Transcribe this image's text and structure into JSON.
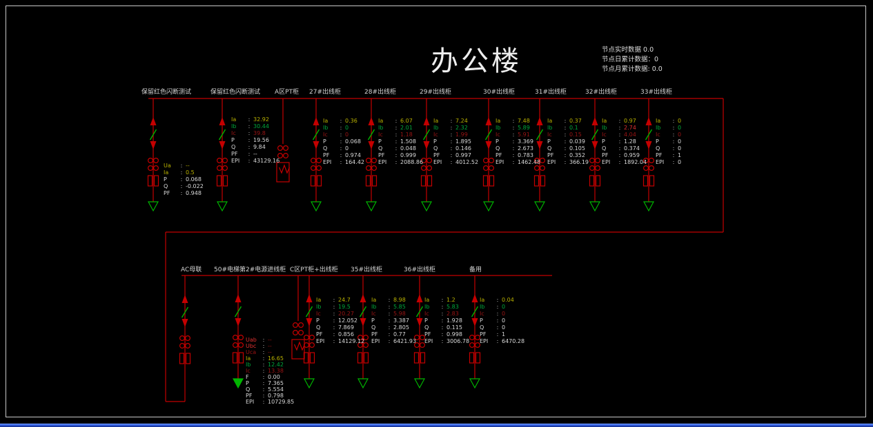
{
  "title": "办公楼",
  "node_info": {
    "realtime": "节点实时数据  0.0",
    "daily": "节点日累计数据：0",
    "monthly": "节点月累计数据: 0.0"
  },
  "colors": {
    "bus_red": "#c40000",
    "device_green": "#00b400",
    "text_yellow": "#b9b100",
    "text_green": "#00a93c",
    "text_red_dim": "#9c1414",
    "text_white": "#dadada",
    "bottom_bar_blue": "#2b55d6"
  },
  "top_row": {
    "feeders": [
      {
        "label": "保留红色闪断测试",
        "readings": [
          {
            "k": "Ua",
            "v": "--",
            "c": "y"
          },
          {
            "k": "Ia",
            "v": "0.5",
            "c": "y"
          },
          {
            "k": "P",
            "v": "0.068",
            "c": "w"
          },
          {
            "k": "Q",
            "v": "-0.022",
            "c": "w"
          },
          {
            "k": "PF",
            "v": "0.948",
            "c": "w"
          }
        ]
      },
      {
        "label": "保留红色闪断测试",
        "readings": [
          {
            "k": "Ia",
            "v": "32.92",
            "c": "y"
          },
          {
            "k": "Ib",
            "v": "30.44",
            "c": "g"
          },
          {
            "k": "Ic",
            "v": "39.8",
            "c": "rd"
          },
          {
            "k": "P",
            "v": "19.56",
            "c": "w"
          },
          {
            "k": "Q",
            "v": "9.84",
            "c": "w"
          },
          {
            "k": "PF",
            "v": "--",
            "c": "w"
          },
          {
            "k": "EPI",
            "v": "43129.16",
            "c": "w"
          }
        ]
      },
      {
        "label": "A区PT柜",
        "readings": []
      },
      {
        "label": "27#出线柜",
        "readings": [
          {
            "k": "Ia",
            "v": "0.36",
            "c": "y"
          },
          {
            "k": "Ib",
            "v": "0",
            "c": "g"
          },
          {
            "k": "Ic",
            "v": "0",
            "c": "rd"
          },
          {
            "k": "P",
            "v": "0.068",
            "c": "w"
          },
          {
            "k": "Q",
            "v": "0",
            "c": "w"
          },
          {
            "k": "PF",
            "v": "0.974",
            "c": "w"
          },
          {
            "k": "EPI",
            "v": "164.42",
            "c": "w"
          }
        ]
      },
      {
        "label": "28#出线柜",
        "readings": [
          {
            "k": "Ia",
            "v": "6.07",
            "c": "y"
          },
          {
            "k": "Ib",
            "v": "2.01",
            "c": "g"
          },
          {
            "k": "Ic",
            "v": "1.18",
            "c": "rd"
          },
          {
            "k": "P",
            "v": "1.508",
            "c": "w"
          },
          {
            "k": "Q",
            "v": "0.048",
            "c": "w"
          },
          {
            "k": "PF",
            "v": "0.999",
            "c": "w"
          },
          {
            "k": "EPI",
            "v": "2088.86",
            "c": "w"
          }
        ]
      },
      {
        "label": "29#出线柜",
        "readings": [
          {
            "k": "Ia",
            "v": "7.24",
            "c": "y"
          },
          {
            "k": "Ib",
            "v": "2.32",
            "c": "g"
          },
          {
            "k": "Ic",
            "v": "1.99",
            "c": "rd"
          },
          {
            "k": "P",
            "v": "1.895",
            "c": "w"
          },
          {
            "k": "Q",
            "v": "0.146",
            "c": "w"
          },
          {
            "k": "PF",
            "v": "0.997",
            "c": "w"
          },
          {
            "k": "EPI",
            "v": "4012.52",
            "c": "w"
          }
        ]
      },
      {
        "label": "30#出线柜",
        "readings": [
          {
            "k": "Ia",
            "v": "7.48",
            "c": "y"
          },
          {
            "k": "Ib",
            "v": "5.89",
            "c": "g"
          },
          {
            "k": "Ic",
            "v": "5.91",
            "c": "rd"
          },
          {
            "k": "P",
            "v": "3.369",
            "c": "w"
          },
          {
            "k": "Q",
            "v": "2.673",
            "c": "w"
          },
          {
            "k": "PF",
            "v": "0.783",
            "c": "w"
          },
          {
            "k": "EPI",
            "v": "1462.48",
            "c": "w"
          }
        ]
      },
      {
        "label": "31#出线柜",
        "readings": [
          {
            "k": "Ia",
            "v": "0.37",
            "c": "y"
          },
          {
            "k": "Ib",
            "v": "0.1",
            "c": "g"
          },
          {
            "k": "Ic",
            "v": "0.15",
            "c": "rd"
          },
          {
            "k": "P",
            "v": "0.039",
            "c": "w"
          },
          {
            "k": "Q",
            "v": "0.105",
            "c": "w"
          },
          {
            "k": "PF",
            "v": "0.352",
            "c": "w"
          },
          {
            "k": "EPI",
            "v": "366.19",
            "c": "w"
          }
        ]
      },
      {
        "label": "32#出线柜",
        "readings": [
          {
            "k": "Ia",
            "v": "0.97",
            "c": "y"
          },
          {
            "k": "Ib",
            "v": "2.74",
            "c": "g",
            "vc": "r"
          },
          {
            "k": "Ic",
            "v": "4.04",
            "c": "rd"
          },
          {
            "k": "P",
            "v": "1.28",
            "c": "w"
          },
          {
            "k": "Q",
            "v": "0.374",
            "c": "w"
          },
          {
            "k": "PF",
            "v": "0.959",
            "c": "w"
          },
          {
            "k": "EPI",
            "v": "1892.04",
            "c": "w"
          }
        ]
      },
      {
        "label": "33#出线柜",
        "readings": [
          {
            "k": "Ia",
            "v": "0",
            "c": "y"
          },
          {
            "k": "Ib",
            "v": "0",
            "c": "g"
          },
          {
            "k": "Ic",
            "v": "0",
            "c": "rd"
          },
          {
            "k": "P",
            "v": "0",
            "c": "w"
          },
          {
            "k": "Q",
            "v": "0",
            "c": "w"
          },
          {
            "k": "PF",
            "v": "1",
            "c": "w"
          },
          {
            "k": "EPI",
            "v": "0",
            "c": "w"
          }
        ]
      }
    ]
  },
  "bottom_row": {
    "feeders": [
      {
        "label": "AC母联",
        "readings": []
      },
      {
        "label": "50#电梯第2#电源进线柜",
        "readings": [
          {
            "k": "Uab",
            "v": "--",
            "c": "r",
            "vc": "rd"
          },
          {
            "k": "Ubc",
            "v": "--",
            "c": "r",
            "vc": "rd"
          },
          {
            "k": "Uca",
            "v": "--",
            "c": "rd"
          },
          {
            "k": "Ia",
            "v": "16.65",
            "c": "y"
          },
          {
            "k": "Ib",
            "v": "12.42",
            "c": "g"
          },
          {
            "k": "Ic",
            "v": "13.38",
            "c": "rd"
          },
          {
            "k": "F",
            "v": "0.00",
            "c": "w"
          },
          {
            "k": "P",
            "v": "7.365",
            "c": "w"
          },
          {
            "k": "Q",
            "v": "5.554",
            "c": "w"
          },
          {
            "k": "PF",
            "v": "0.798",
            "c": "w"
          },
          {
            "k": "EPI",
            "v": "10729.85",
            "c": "w"
          }
        ]
      },
      {
        "label": "C区PT柜+出线柜",
        "readings": [
          {
            "k": "Ia",
            "v": "24.7",
            "c": "y"
          },
          {
            "k": "Ib",
            "v": "19.5",
            "c": "g"
          },
          {
            "k": "Ic",
            "v": "20.27",
            "c": "rd"
          },
          {
            "k": "P",
            "v": "12.052",
            "c": "w"
          },
          {
            "k": "Q",
            "v": "7.869",
            "c": "w"
          },
          {
            "k": "PF",
            "v": "0.856",
            "c": "w"
          },
          {
            "k": "EPI",
            "v": "14129.12",
            "c": "w"
          }
        ]
      },
      {
        "label": "35#出线柜",
        "readings": [
          {
            "k": "Ia",
            "v": "8.98",
            "c": "y"
          },
          {
            "k": "Ib",
            "v": "5.85",
            "c": "g"
          },
          {
            "k": "Ic",
            "v": "5.98",
            "c": "rd"
          },
          {
            "k": "P",
            "v": "3.387",
            "c": "w"
          },
          {
            "k": "Q",
            "v": "2.805",
            "c": "w"
          },
          {
            "k": "PF",
            "v": "0.77",
            "c": "w"
          },
          {
            "k": "EPI",
            "v": "6421.93",
            "c": "w"
          }
        ]
      },
      {
        "label": "36#出线柜",
        "readings": [
          {
            "k": "Ia",
            "v": "1.2",
            "c": "y"
          },
          {
            "k": "Ib",
            "v": "5.83",
            "c": "g"
          },
          {
            "k": "Ic",
            "v": "2.83",
            "c": "rd"
          },
          {
            "k": "P",
            "v": "1.928",
            "c": "w"
          },
          {
            "k": "Q",
            "v": "0.115",
            "c": "w"
          },
          {
            "k": "PF",
            "v": "0.998",
            "c": "w"
          },
          {
            "k": "EPI",
            "v": "3006.78",
            "c": "w"
          }
        ]
      },
      {
        "label": "备用",
        "readings": [
          {
            "k": "Ia",
            "v": "0.04",
            "c": "y"
          },
          {
            "k": "Ib",
            "v": "0",
            "c": "g"
          },
          {
            "k": "Ic",
            "v": "0",
            "c": "rd"
          },
          {
            "k": "P",
            "v": "0",
            "c": "w"
          },
          {
            "k": "Q",
            "v": "0",
            "c": "w"
          },
          {
            "k": "PF",
            "v": "1",
            "c": "w"
          },
          {
            "k": "EPI",
            "v": "6470.28",
            "c": "w"
          }
        ]
      }
    ]
  }
}
